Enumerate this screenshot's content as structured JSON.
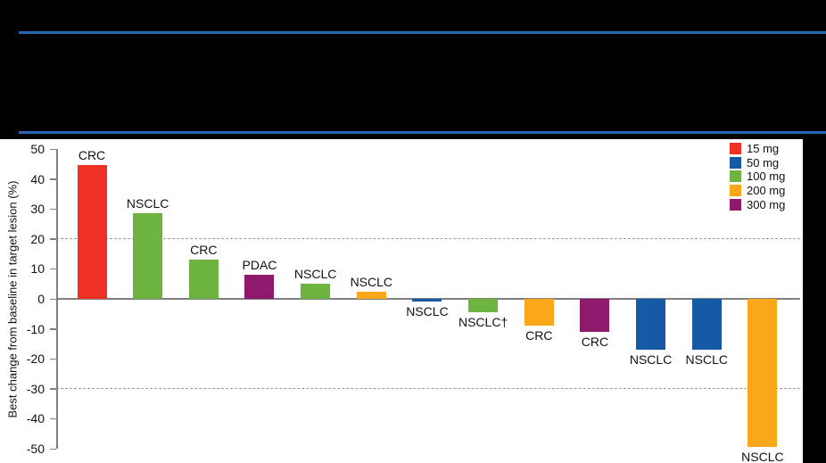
{
  "page": {
    "background_color": "#000000",
    "divider_color": "#2768b4"
  },
  "legend": {
    "position": "top-right",
    "items": [
      {
        "label": "15 mg",
        "color": "#ee3124"
      },
      {
        "label": "50 mg",
        "color": "#1659a5"
      },
      {
        "label": "100 mg",
        "color": "#6cb43f"
      },
      {
        "label": "200 mg",
        "color": "#faa61a"
      },
      {
        "label": "300 mg",
        "color": "#8e1a6b"
      }
    ]
  },
  "chart_data": {
    "type": "bar",
    "title": "",
    "xlabel": "",
    "ylabel": "Best change from baseline in target lesion (%)",
    "ylim": [
      -50,
      50
    ],
    "yticks": [
      50,
      40,
      30,
      20,
      10,
      0,
      -10,
      -20,
      -30,
      -40,
      -50
    ],
    "reference_lines": [
      20,
      -30
    ],
    "grid": false,
    "legend_position": "top-right",
    "categories": [
      "CRC",
      "NSCLC",
      "CRC",
      "PDAC",
      "NSCLC",
      "NSCLC",
      "NSCLC",
      "NSCLC†",
      "CRC",
      "CRC",
      "NSCLC",
      "NSCLC",
      "NSCLC"
    ],
    "series": [
      {
        "name": "Best change from baseline in target lesion (%)",
        "values": [
          44.5,
          28.5,
          13,
          8,
          5,
          2.5,
          -1,
          -4.5,
          -9,
          -11,
          -17,
          -17,
          -49.5
        ]
      }
    ],
    "doses": [
      "15 mg",
      "100 mg",
      "100 mg",
      "300 mg",
      "100 mg",
      "200 mg",
      "50 mg",
      "100 mg",
      "200 mg",
      "300 mg",
      "50 mg",
      "50 mg",
      "200 mg"
    ]
  }
}
